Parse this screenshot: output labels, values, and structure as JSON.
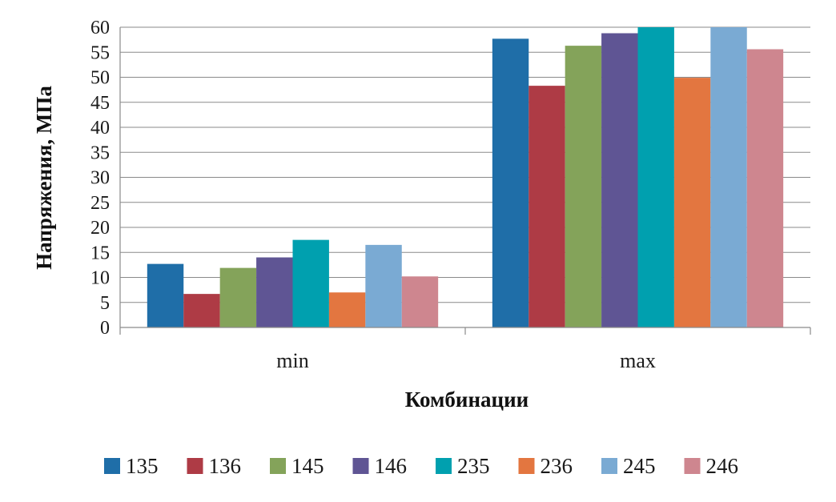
{
  "chart_data": {
    "type": "bar",
    "categories": [
      "min",
      "max"
    ],
    "series": [
      {
        "name": "135",
        "color": "#1F6EA8",
        "values": [
          12.7,
          57.7
        ]
      },
      {
        "name": "136",
        "color": "#AE3B45",
        "values": [
          6.7,
          48.3
        ]
      },
      {
        "name": "145",
        "color": "#84A35A",
        "values": [
          11.9,
          56.3
        ]
      },
      {
        "name": "146",
        "color": "#5F5594",
        "values": [
          14.0,
          58.8
        ]
      },
      {
        "name": "235",
        "color": "#00A0AF",
        "values": [
          17.5,
          60.0
        ]
      },
      {
        "name": "236",
        "color": "#E37640",
        "values": [
          7.0,
          49.9
        ]
      },
      {
        "name": "245",
        "color": "#7AAAD3",
        "values": [
          16.5,
          60.0
        ]
      },
      {
        "name": "246",
        "color": "#CE868F",
        "values": [
          10.2,
          55.6
        ]
      }
    ],
    "title": "",
    "xlabel": "Комбинации",
    "ylabel": "Напряжения, МПа",
    "ylim": [
      0,
      60
    ],
    "yticks": [
      "0",
      "5",
      "10",
      "15",
      "20",
      "25",
      "30",
      "35",
      "40",
      "45",
      "50",
      "55",
      "60"
    ],
    "grid": true,
    "legend": "bottom"
  }
}
